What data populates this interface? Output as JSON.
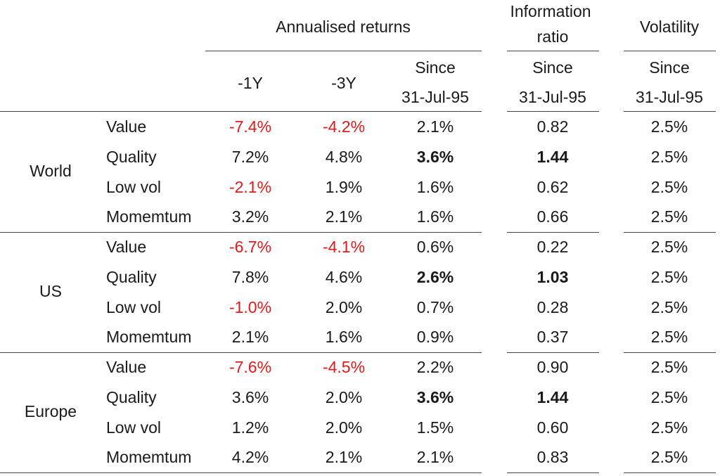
{
  "header": {
    "annualised_returns": "Annualised returns",
    "information_ratio_line1": "Information",
    "information_ratio_line2": "ratio",
    "volatility": "Volatility",
    "col_1y": "-1Y",
    "col_3y": "-3Y",
    "since_label": "Since",
    "since_date": "31-Jul-95"
  },
  "regions": [
    {
      "name": "World",
      "rows": [
        {
          "factor": "Value",
          "y1": "-7.4%",
          "y3": "-4.2%",
          "since": "2.1%",
          "ir": "0.82",
          "vol": "2.5%"
        },
        {
          "factor": "Quality",
          "y1": "7.2%",
          "y3": "4.8%",
          "since": "3.6%",
          "ir": "1.44",
          "vol": "2.5%"
        },
        {
          "factor": "Low vol",
          "y1": "-2.1%",
          "y3": "1.9%",
          "since": "1.6%",
          "ir": "0.62",
          "vol": "2.5%"
        },
        {
          "factor": "Momemtum",
          "y1": "3.2%",
          "y3": "2.1%",
          "since": "1.6%",
          "ir": "0.66",
          "vol": "2.5%"
        }
      ]
    },
    {
      "name": "US",
      "rows": [
        {
          "factor": "Value",
          "y1": "-6.7%",
          "y3": "-4.1%",
          "since": "0.6%",
          "ir": "0.22",
          "vol": "2.5%"
        },
        {
          "factor": "Quality",
          "y1": "7.8%",
          "y3": "4.6%",
          "since": "2.6%",
          "ir": "1.03",
          "vol": "2.5%"
        },
        {
          "factor": "Low vol",
          "y1": "-1.0%",
          "y3": "2.0%",
          "since": "0.7%",
          "ir": "0.28",
          "vol": "2.5%"
        },
        {
          "factor": "Momemtum",
          "y1": "2.1%",
          "y3": "1.6%",
          "since": "0.9%",
          "ir": "0.37",
          "vol": "2.5%"
        }
      ]
    },
    {
      "name": "Europe",
      "rows": [
        {
          "factor": "Value",
          "y1": "-7.6%",
          "y3": "-4.5%",
          "since": "2.2%",
          "ir": "0.90",
          "vol": "2.5%"
        },
        {
          "factor": "Quality",
          "y1": "3.6%",
          "y3": "2.0%",
          "since": "3.6%",
          "ir": "1.44",
          "vol": "2.5%"
        },
        {
          "factor": "Low vol",
          "y1": "1.2%",
          "y3": "2.0%",
          "since": "1.5%",
          "ir": "0.60",
          "vol": "2.5%"
        },
        {
          "factor": "Momemtum",
          "y1": "4.2%",
          "y3": "2.1%",
          "since": "2.1%",
          "ir": "0.83",
          "vol": "2.5%"
        }
      ]
    }
  ],
  "colors": {
    "negative": "#e31a1c",
    "text": "#1a1a1a",
    "rule": "#444444"
  }
}
